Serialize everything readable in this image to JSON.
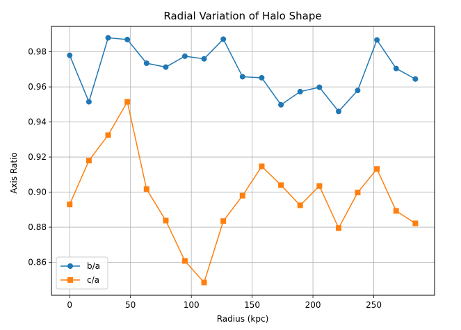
{
  "chart_data": {
    "type": "line",
    "title": "Radial Variation of Halo Shape",
    "xlabel": "Radius (kpc)",
    "ylabel": "Axis Ratio",
    "x": [
      0,
      15.8,
      31.6,
      47.4,
      63.2,
      79,
      94.7,
      110.5,
      126.3,
      142.1,
      157.9,
      173.7,
      189.5,
      205.3,
      221.1,
      236.8,
      252.6,
      268.4,
      284.2
    ],
    "series": [
      {
        "name": "b/a",
        "color": "#1f77b4",
        "marker": "circle",
        "values": [
          0.978,
          0.9515,
          0.988,
          0.987,
          0.9735,
          0.9713,
          0.9775,
          0.976,
          0.9872,
          0.9658,
          0.9652,
          0.9498,
          0.9573,
          0.9598,
          0.946,
          0.958,
          0.9868,
          0.9705,
          0.9645
        ]
      },
      {
        "name": "c/a",
        "color": "#ff7f0e",
        "marker": "square",
        "values": [
          0.893,
          0.918,
          0.9325,
          0.9515,
          0.9017,
          0.8838,
          0.8608,
          0.8485,
          0.8835,
          0.898,
          0.9147,
          0.904,
          0.8925,
          0.9035,
          0.8795,
          0.8998,
          0.9132,
          0.8893,
          0.8822
        ]
      }
    ],
    "xlim": [
      -15,
      300
    ],
    "ylim": [
      0.8412,
      0.9945
    ],
    "xticks": [
      0,
      50,
      100,
      150,
      200,
      250
    ],
    "yticks": [
      0.86,
      0.88,
      0.9,
      0.92,
      0.94,
      0.96,
      0.98
    ],
    "ytick_labels": [
      "0.86",
      "0.88",
      "0.90",
      "0.92",
      "0.94",
      "0.96",
      "0.98"
    ],
    "grid": true,
    "legend_position": "lower-left"
  }
}
